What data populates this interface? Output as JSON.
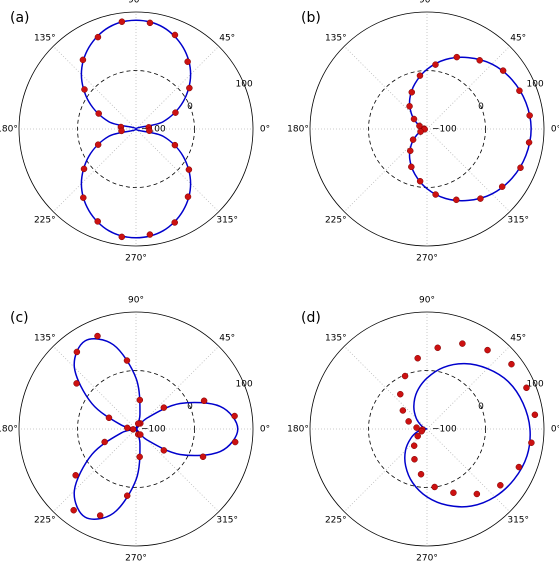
{
  "chart_data": [
    {
      "type": "polar",
      "title": "(a)",
      "rlim": [
        -100,
        100
      ],
      "rticks": [
        {
          "value": -100,
          "label": "−100"
        },
        0,
        100
      ],
      "thetaticks": [
        {
          "value": 0,
          "label": "0°"
        },
        {
          "value": 45,
          "label": "45°"
        },
        {
          "value": 90,
          "label": "90°"
        },
        {
          "value": 135,
          "label": "135°"
        },
        {
          "value": 180,
          "label": "180°"
        },
        {
          "value": 225,
          "label": "225°"
        },
        {
          "value": 270,
          "label": "270°"
        },
        {
          "value": 315,
          "label": "315°"
        }
      ],
      "series": [
        {
          "type": "line",
          "color": "#0000cc",
          "theta": [
            0,
            15,
            30,
            45,
            60,
            75,
            90,
            105,
            120,
            135,
            150,
            165,
            180,
            195,
            210,
            225,
            240,
            255,
            270,
            285,
            300,
            315,
            330,
            345
          ],
          "values": [
            -100,
            -52,
            -7,
            32,
            61,
            80,
            86,
            80,
            61,
            32,
            -7,
            -52,
            -100,
            -52,
            -7,
            32,
            61,
            80,
            86,
            80,
            61,
            32,
            -7,
            -52
          ]
        },
        {
          "type": "scatter",
          "color": "#cc1111",
          "theta": [
            7.5,
            22.5,
            37.5,
            52.5,
            67.5,
            82.5,
            97.5,
            112.5,
            127.5,
            142.5,
            157.5,
            172.5,
            187.5,
            202.5,
            217.5,
            232.5,
            247.5,
            262.5,
            277.5,
            292.5,
            307.5,
            322.5,
            337.5,
            352.5
          ],
          "values": [
            -78,
            -27,
            15,
            45,
            74,
            83,
            85,
            70,
            49,
            11,
            -31,
            -74,
            -75,
            -30,
            12,
            48,
            71,
            86,
            82,
            73,
            46,
            14,
            -28,
            -77
          ]
        }
      ]
    },
    {
      "type": "polar",
      "title": "(b)",
      "rlim": [
        -100,
        100
      ],
      "rticks": [
        {
          "value": -100,
          "label": "−100"
        },
        0,
        100
      ],
      "thetaticks": [
        {
          "value": 0,
          "label": "0°"
        },
        {
          "value": 45,
          "label": "45°"
        },
        {
          "value": 90,
          "label": "90°"
        },
        {
          "value": 135,
          "label": "135°"
        },
        {
          "value": 180,
          "label": "180°"
        },
        {
          "value": 225,
          "label": "225°"
        },
        {
          "value": 270,
          "label": "270°"
        },
        {
          "value": 315,
          "label": "315°"
        }
      ],
      "series": [
        {
          "type": "line",
          "color": "#0000cc",
          "theta": [
            0,
            15,
            30,
            45,
            60,
            75,
            90,
            105,
            120,
            135,
            150,
            165,
            180,
            195,
            210,
            225,
            240,
            255,
            270,
            285,
            300,
            315,
            330,
            345
          ],
          "values": [
            78,
            75,
            68,
            57,
            41,
            23,
            2,
            -20,
            -41,
            -62,
            -80,
            -93,
            -100,
            -93,
            -80,
            -62,
            -41,
            -20,
            2,
            23,
            41,
            57,
            68,
            75
          ]
        },
        {
          "type": "scatter",
          "color": "#cc1111",
          "theta": [
            7.5,
            22.5,
            37.5,
            52.5,
            67.5,
            82.5,
            97.5,
            112.5,
            127.5,
            142.5,
            157.5,
            172.5,
            187.5,
            202.5,
            217.5,
            232.5,
            247.5,
            262.5,
            277.5,
            292.5,
            307.5,
            322.5,
            337.5,
            352.5
          ],
          "values": [
            77,
            71,
            64,
            48,
            33,
            11,
            -8,
            -32,
            -51,
            -72,
            -86,
            -95,
            -96,
            -88,
            -70,
            -53,
            -30,
            -10,
            13,
            31,
            50,
            62,
            73,
            76
          ]
        }
      ]
    },
    {
      "type": "polar",
      "title": "(c)",
      "rlim": [
        -100,
        100
      ],
      "rticks": [
        {
          "value": -100,
          "label": "−100"
        },
        0,
        100
      ],
      "thetaticks": [
        {
          "value": 0,
          "label": "0°"
        },
        {
          "value": 45,
          "label": "45°"
        },
        {
          "value": 90,
          "label": "90°"
        },
        {
          "value": 135,
          "label": "135°"
        },
        {
          "value": 180,
          "label": "180°"
        },
        {
          "value": 225,
          "label": "225°"
        },
        {
          "value": 270,
          "label": "270°"
        },
        {
          "value": 315,
          "label": "315°"
        }
      ],
      "series": [
        {
          "type": "line",
          "color": "#0000cc",
          "theta": [
            0,
            15,
            30,
            45,
            60,
            75,
            90,
            105,
            120,
            135,
            150,
            165,
            180,
            195,
            210,
            225,
            240,
            255,
            270,
            285,
            300,
            315,
            330,
            345
          ],
          "values": [
            74,
            49,
            -13,
            -74,
            -100,
            -74,
            -13,
            49,
            74,
            49,
            -13,
            -74,
            -100,
            -74,
            -13,
            49,
            74,
            49,
            -13,
            -74,
            -100,
            -74,
            -13,
            49
          ]
        },
        {
          "type": "scatter",
          "color": "#cc1111",
          "theta": [
            7.5,
            22.5,
            37.5,
            52.5,
            67.5,
            82.5,
            97.5,
            112.5,
            127.5,
            142.5,
            157.5,
            172.5,
            187.5,
            202.5,
            217.5,
            232.5,
            247.5,
            262.5,
            277.5,
            292.5,
            307.5,
            322.5,
            337.5,
            352.5
          ],
          "values": [
            70,
            26,
            -40,
            -88,
            -90,
            -50,
            18,
            72,
            66,
            28,
            -50,
            -85,
            -95,
            -42,
            30,
            75,
            60,
            15,
            -52,
            -90,
            -88,
            -40,
            24,
            71
          ]
        }
      ]
    },
    {
      "type": "polar",
      "title": "(d)",
      "rlim": [
        -100,
        100
      ],
      "rticks": [
        {
          "value": -100,
          "label": "−100"
        },
        0,
        100
      ],
      "thetaticks": [
        {
          "value": 0,
          "label": "0°"
        },
        {
          "value": 45,
          "label": "45°"
        },
        {
          "value": 90,
          "label": "90°"
        },
        {
          "value": 135,
          "label": "135°"
        },
        {
          "value": 180,
          "label": "180°"
        },
        {
          "value": 225,
          "label": "225°"
        },
        {
          "value": 270,
          "label": "270°"
        },
        {
          "value": 315,
          "label": "315°"
        }
      ],
      "series": [
        {
          "type": "line",
          "color": "#0000cc",
          "theta": [
            0,
            15,
            30,
            45,
            60,
            75,
            90,
            105,
            120,
            135,
            150,
            165,
            180,
            195,
            210,
            225,
            240,
            255,
            270,
            285,
            300,
            315,
            330,
            345
          ],
          "values": [
            76,
            70,
            61,
            46,
            29,
            9,
            -13,
            -34,
            -55,
            -74,
            -89,
            -98,
            -98,
            -84,
            -68,
            -48,
            -27,
            -5,
            16,
            35,
            52,
            64,
            72,
            77
          ]
        },
        {
          "type": "scatter",
          "color": "#cc1111",
          "theta": [
            7.5,
            22.5,
            37.5,
            52.5,
            67.5,
            82.5,
            97.5,
            112.5,
            127.5,
            142.5,
            157.5,
            172.5,
            187.5,
            202.5,
            217.5,
            232.5,
            247.5,
            262.5,
            277.5,
            292.5,
            307.5,
            322.5,
            337.5,
            352.5
          ],
          "values": [
            86,
            84,
            82,
            70,
            58,
            40,
            22,
            -2,
            -25,
            -48,
            -66,
            -82,
            -92,
            -90,
            -80,
            -64,
            -44,
            -22,
            0,
            18,
            40,
            58,
            70,
            80
          ]
        }
      ]
    }
  ]
}
